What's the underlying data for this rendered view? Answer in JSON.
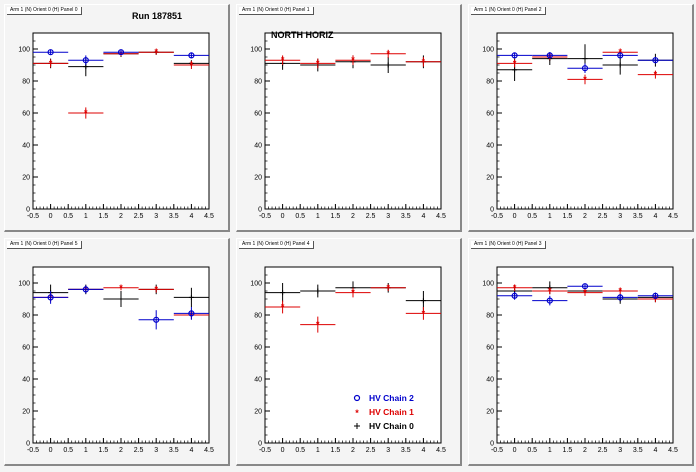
{
  "run_label": "Run 187851",
  "panel_label": "NORTH HORIZ",
  "legend": [
    {
      "label": "HV Chain 2",
      "color": "#0000cc",
      "marker": "open-circle"
    },
    {
      "label": "HV Chain 1",
      "color": "#dd0000",
      "marker": "star"
    },
    {
      "label": "HV Chain 0",
      "color": "#000000",
      "marker": "plus"
    }
  ],
  "chart_data": [
    {
      "type": "scatter",
      "title": "Arm 1 (N) Orient 0 (H) Panel 0",
      "xlim": [
        -0.5,
        4.5
      ],
      "ylim": [
        0,
        110
      ],
      "xticks": [
        "-0.5",
        "0",
        "0.5",
        "1",
        "1.5",
        "2",
        "2.5",
        "3",
        "3.5",
        "4",
        "4.5"
      ],
      "yticks": [
        "0",
        "20",
        "40",
        "60",
        "80",
        "100"
      ],
      "series": [
        {
          "name": "HV Chain 2",
          "x": [
            0,
            1,
            2,
            4
          ],
          "y": [
            98,
            93,
            98,
            96
          ],
          "yerr": [
            1.5,
            3,
            1.5,
            1.5
          ]
        },
        {
          "name": "HV Chain 1",
          "x": [
            0,
            1,
            2,
            3,
            4
          ],
          "y": [
            91,
            60,
            97,
            98,
            90
          ],
          "yerr": [
            2.5,
            3.5,
            1.5,
            1.5,
            2.5
          ]
        },
        {
          "name": "HV Chain 0",
          "x": [
            0,
            1,
            2,
            3,
            4
          ],
          "y": [
            91,
            89,
            97,
            98,
            91
          ],
          "yerr": [
            3,
            6,
            2,
            1.5,
            2
          ]
        }
      ]
    },
    {
      "type": "scatter",
      "title": "Arm 1 (N) Orient 0 (H) Panel 1",
      "xlim": [
        -0.5,
        4.5
      ],
      "ylim": [
        0,
        110
      ],
      "xticks": [
        "-0.5",
        "0",
        "0.5",
        "1",
        "1.5",
        "2",
        "2.5",
        "3",
        "3.5",
        "4",
        "4.5"
      ],
      "yticks": [
        "0",
        "20",
        "40",
        "60",
        "80",
        "100"
      ],
      "series": [
        {
          "name": "HV Chain 1",
          "x": [
            0,
            1,
            2,
            3,
            4
          ],
          "y": [
            93,
            91,
            93,
            97,
            92
          ],
          "yerr": [
            3,
            3,
            3,
            2.5,
            3
          ]
        },
        {
          "name": "HV Chain 0",
          "x": [
            0,
            1,
            2,
            3,
            4
          ],
          "y": [
            91,
            90,
            92,
            90,
            92
          ],
          "yerr": [
            4,
            4,
            4,
            5,
            4
          ]
        }
      ]
    },
    {
      "type": "scatter",
      "title": "Arm 1 (N) Orient 0 (H) Panel 2",
      "xlim": [
        -0.5,
        4.5
      ],
      "ylim": [
        0,
        110
      ],
      "xticks": [
        "-0.5",
        "0",
        "0.5",
        "1",
        "1.5",
        "2",
        "2.5",
        "3",
        "3.5",
        "4",
        "4.5"
      ],
      "yticks": [
        "0",
        "20",
        "40",
        "60",
        "80",
        "100"
      ],
      "series": [
        {
          "name": "HV Chain 2",
          "x": [
            0,
            1,
            2,
            3,
            4
          ],
          "y": [
            96,
            96,
            88,
            96,
            93
          ],
          "yerr": [
            1.5,
            2,
            3,
            1.5,
            2
          ]
        },
        {
          "name": "HV Chain 1",
          "x": [
            0,
            1,
            2,
            3,
            4
          ],
          "y": [
            91,
            95,
            81,
            98,
            84
          ],
          "yerr": [
            2.5,
            2,
            3,
            1.5,
            2.5
          ]
        },
        {
          "name": "HV Chain 0",
          "x": [
            0,
            1,
            2,
            3,
            4
          ],
          "y": [
            87,
            94,
            94,
            90,
            93
          ],
          "yerr": [
            7,
            4,
            9,
            6,
            4
          ]
        }
      ]
    },
    {
      "type": "scatter",
      "title": "Arm 1 (N) Orient 0 (H) Panel 5",
      "xlim": [
        -0.5,
        4.5
      ],
      "ylim": [
        0,
        110
      ],
      "xticks": [
        "-0.5",
        "0",
        "0.5",
        "1",
        "1.5",
        "2",
        "2.5",
        "3",
        "3.5",
        "4",
        "4.5"
      ],
      "yticks": [
        "0",
        "20",
        "40",
        "60",
        "80",
        "100"
      ],
      "series": [
        {
          "name": "HV Chain 2",
          "x": [
            0,
            1,
            3,
            4
          ],
          "y": [
            91,
            96,
            77,
            81
          ],
          "yerr": [
            4,
            2.5,
            6,
            4
          ]
        },
        {
          "name": "HV Chain 1",
          "x": [
            0,
            1,
            2,
            3,
            4
          ],
          "y": [
            91,
            96,
            97,
            96,
            80
          ],
          "yerr": [
            2.5,
            2,
            1.5,
            2,
            2.5
          ]
        },
        {
          "name": "HV Chain 0",
          "x": [
            0,
            1,
            2,
            3,
            4
          ],
          "y": [
            94,
            96,
            90,
            96,
            91
          ],
          "yerr": [
            5,
            3,
            5,
            3,
            6
          ]
        }
      ]
    },
    {
      "type": "scatter",
      "title": "Arm 1 (N) Orient 0 (H) Panel 4",
      "xlim": [
        -0.5,
        4.5
      ],
      "ylim": [
        0,
        110
      ],
      "xticks": [
        "-0.5",
        "0",
        "0.5",
        "1",
        "1.5",
        "2",
        "2.5",
        "3",
        "3.5",
        "4",
        "4.5"
      ],
      "yticks": [
        "0",
        "20",
        "40",
        "60",
        "80",
        "100"
      ],
      "series": [
        {
          "name": "HV Chain 1",
          "x": [
            0,
            1,
            2,
            3,
            4
          ],
          "y": [
            85,
            74,
            94,
            97,
            81
          ],
          "yerr": [
            4,
            5,
            3,
            2,
            4
          ]
        },
        {
          "name": "HV Chain 0",
          "x": [
            0,
            1,
            2,
            3,
            4
          ],
          "y": [
            94,
            95,
            97,
            97,
            89
          ],
          "yerr": [
            6,
            4,
            4,
            3,
            6
          ]
        }
      ]
    },
    {
      "type": "scatter",
      "title": "Arm 1 (N) Orient 0 (H) Panel 3",
      "xlim": [
        -0.5,
        4.5
      ],
      "ylim": [
        0,
        110
      ],
      "xticks": [
        "-0.5",
        "0",
        "0.5",
        "1",
        "1.5",
        "2",
        "2.5",
        "3",
        "3.5",
        "4",
        "4.5"
      ],
      "yticks": [
        "0",
        "20",
        "40",
        "60",
        "80",
        "100"
      ],
      "series": [
        {
          "name": "HV Chain 2",
          "x": [
            0,
            1,
            2,
            3,
            4
          ],
          "y": [
            92,
            89,
            98,
            91,
            92
          ],
          "yerr": [
            2.5,
            3,
            1.5,
            2,
            2
          ]
        },
        {
          "name": "HV Chain 1",
          "x": [
            0,
            1,
            2,
            3,
            4
          ],
          "y": [
            97,
            95,
            94,
            95,
            90
          ],
          "yerr": [
            2,
            2,
            2,
            2,
            2
          ]
        },
        {
          "name": "HV Chain 0",
          "x": [
            0,
            1,
            2,
            3,
            4
          ],
          "y": [
            95,
            97,
            95,
            90,
            91
          ],
          "yerr": [
            4,
            4,
            3,
            3,
            3
          ]
        }
      ]
    }
  ]
}
